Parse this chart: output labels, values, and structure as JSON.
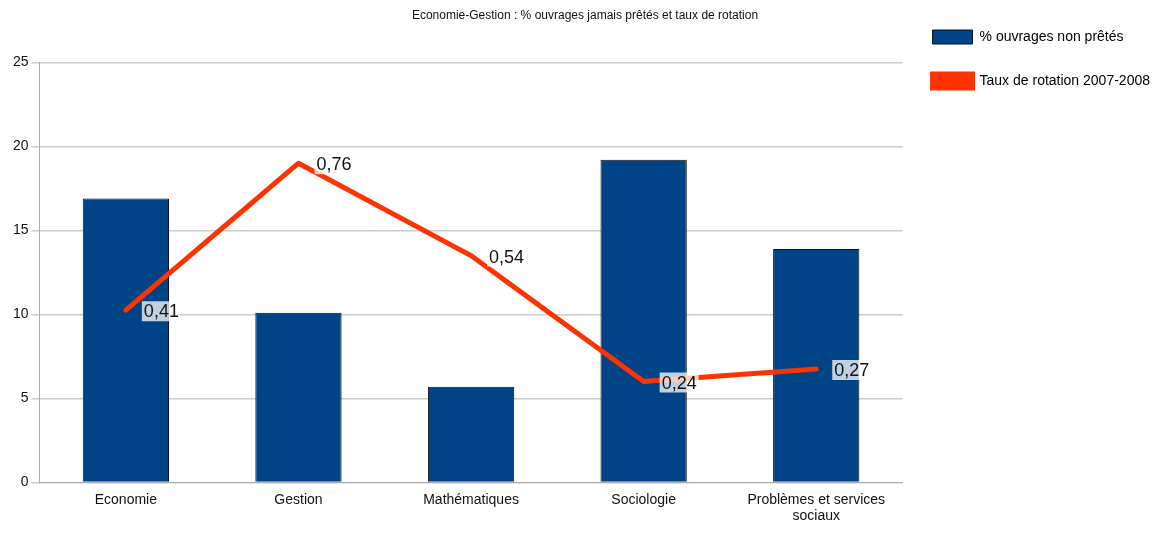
{
  "chart_data": {
    "type": "bar",
    "title": "Economie-Gestion : % ouvrages jamais prêtés et taux de rotation",
    "categories": [
      "Economie",
      "Gestion",
      "Mathématiques",
      "Sociologie",
      "Problèmes et services sociaux"
    ],
    "series": [
      {
        "name": "% ouvrages non prêtés",
        "color": "#004488",
        "values": [
          16.9,
          10.1,
          5.7,
          19.2,
          13.9
        ]
      },
      {
        "name": "Taux de rotation 2007-2008",
        "type": "line",
        "axis": "y2",
        "color": "#ff3300",
        "values": [
          0.41,
          0.76,
          0.54,
          0.24,
          0.27
        ],
        "value_labels": [
          "0,41",
          "0,76",
          "0,54",
          "0,24",
          "0,27"
        ]
      }
    ],
    "ylim": [
      0,
      25
    ],
    "yticks": [
      0,
      5,
      10,
      15,
      20,
      25
    ],
    "y2lim": [
      0,
      1
    ],
    "grid": "y",
    "legend": "top right",
    "marker": "none"
  }
}
